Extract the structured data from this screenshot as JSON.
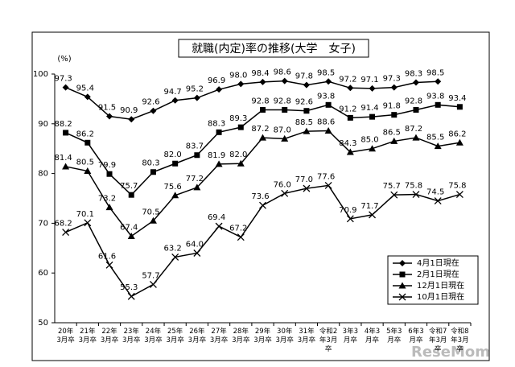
{
  "chart_data": {
    "type": "line",
    "title": "就職(内定)率の推移(大学　女子)",
    "y_label": "(%)",
    "watermark": "ReseMom",
    "categories": [
      "20年3月卒",
      "21年3月卒",
      "22年3月卒",
      "23年3月卒",
      "24年3月卒",
      "25年3月卒",
      "26年3月卒",
      "27年3月卒",
      "28年3月卒",
      "29年3月卒",
      "30年3月卒",
      "31年3月卒",
      "令和2年3月卒",
      "3年3月卒",
      "4年3月卒",
      "5年3月卒",
      "6年3月卒",
      "令和7年3月卒",
      "令和8年3月卒"
    ],
    "ylim": [
      50,
      100
    ],
    "yticks": [
      50,
      60,
      70,
      80,
      90,
      100
    ],
    "legend": "lower right",
    "series": [
      {
        "name": "4月1日現在",
        "color": "#000000",
        "marker": "diamond",
        "values": [
          97.3,
          95.4,
          91.5,
          90.9,
          92.6,
          94.7,
          95.2,
          96.9,
          98.0,
          98.4,
          98.6,
          97.8,
          98.5,
          97.2,
          97.1,
          97.3,
          98.3,
          98.5,
          null
        ],
        "value_labels": [
          "97.3",
          "95.4",
          "91.5",
          "90.9",
          "92.6",
          "94.7",
          "95.2",
          "96.9",
          "98.0",
          "98.4",
          "98.6",
          "97.8",
          "98.5",
          "97.2",
          "97.1",
          "97.3",
          "98.3",
          "98.5",
          null
        ]
      },
      {
        "name": "2月1日現在",
        "color": "#000000",
        "marker": "square",
        "values": [
          88.2,
          86.2,
          79.9,
          75.7,
          80.3,
          82.0,
          83.7,
          88.3,
          89.3,
          92.8,
          92.8,
          92.6,
          93.8,
          91.2,
          91.4,
          91.8,
          92.8,
          93.8,
          93.4
        ],
        "value_labels": [
          "88.2",
          "86.2",
          "79.9",
          "75.7",
          "80.3",
          "82.0",
          "83.7",
          "88.3",
          "89.3",
          "92.8",
          "92.8",
          "92.6",
          "93.8",
          "91.2",
          "91.4",
          "91.8",
          "92.8",
          "93.8",
          "93.4"
        ]
      },
      {
        "name": "12月1日現在",
        "color": "#000000",
        "marker": "triangle",
        "values": [
          81.4,
          80.5,
          73.2,
          67.4,
          70.5,
          75.6,
          77.2,
          81.9,
          82.0,
          87.2,
          87.0,
          88.5,
          88.6,
          84.3,
          85.0,
          86.5,
          87.2,
          85.5,
          86.2
        ],
        "value_labels": [
          "81.4",
          "80.5",
          "73.2",
          "67.4",
          "70.5",
          "75.6",
          "77.2",
          "81.9",
          "82.0",
          "87.2",
          "87.0",
          "88.5",
          "88.6",
          "84.3",
          "85.0",
          "86.5",
          "87.2",
          "85.5",
          "86.2"
        ]
      },
      {
        "name": "10月1日現在",
        "color": "#000000",
        "marker": "x",
        "values": [
          68.2,
          70.1,
          61.6,
          55.3,
          57.7,
          63.2,
          64.0,
          69.4,
          67.2,
          73.6,
          76.0,
          77.0,
          77.6,
          70.9,
          71.7,
          75.7,
          75.8,
          74.5,
          75.8
        ],
        "value_labels": [
          "68.2",
          "70.1",
          "61.6",
          "55.3",
          "57.7",
          "63.2",
          "64.0",
          "69.4",
          "67.2",
          "73.6",
          "76.0",
          "77.0",
          "77.6",
          "70.9",
          "71.7",
          "75.7",
          "75.8",
          "74.5",
          "75.8"
        ]
      }
    ]
  }
}
